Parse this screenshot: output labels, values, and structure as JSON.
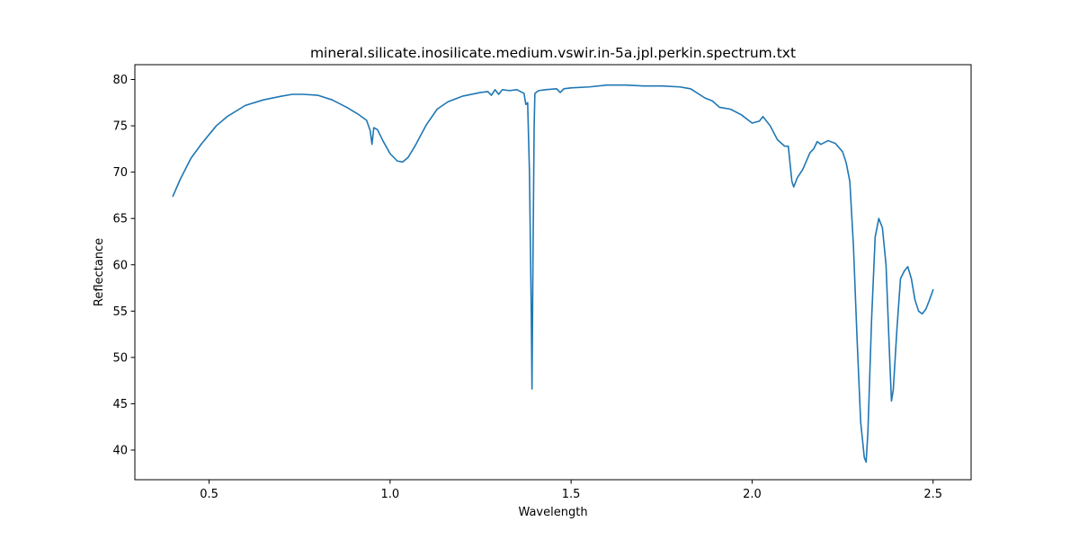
{
  "chart_data": {
    "type": "line",
    "title": "mineral.silicate.inosilicate.medium.vswir.in-5a.jpl.perkin.spectrum.txt",
    "xlabel": "Wavelength",
    "ylabel": "Reflectance",
    "xlim": [
      0.295,
      2.605
    ],
    "ylim": [
      36.8,
      81.6
    ],
    "xticks": [
      0.5,
      1.0,
      1.5,
      2.0,
      2.5
    ],
    "xtick_labels": [
      "0.5",
      "1.0",
      "1.5",
      "2.0",
      "2.5"
    ],
    "yticks": [
      40,
      45,
      50,
      55,
      60,
      65,
      70,
      75,
      80
    ],
    "ytick_labels": [
      "40",
      "45",
      "50",
      "55",
      "60",
      "65",
      "70",
      "75",
      "80"
    ],
    "grid": false,
    "series": [
      {
        "color": "#1f77b4",
        "x": [
          0.4,
          0.42,
          0.45,
          0.48,
          0.52,
          0.55,
          0.6,
          0.65,
          0.7,
          0.73,
          0.76,
          0.8,
          0.84,
          0.88,
          0.91,
          0.935,
          0.945,
          0.95,
          0.955,
          0.965,
          0.98,
          1.0,
          1.02,
          1.035,
          1.05,
          1.07,
          1.1,
          1.13,
          1.16,
          1.2,
          1.25,
          1.27,
          1.28,
          1.29,
          1.3,
          1.31,
          1.33,
          1.35,
          1.37,
          1.375,
          1.38,
          1.385,
          1.39,
          1.392,
          1.395,
          1.398,
          1.4,
          1.41,
          1.43,
          1.46,
          1.47,
          1.48,
          1.5,
          1.55,
          1.6,
          1.65,
          1.7,
          1.75,
          1.8,
          1.83,
          1.87,
          1.89,
          1.91,
          1.94,
          1.97,
          2.0,
          2.02,
          2.03,
          2.05,
          2.07,
          2.09,
          2.1,
          2.11,
          2.115,
          2.125,
          2.14,
          2.16,
          2.17,
          2.18,
          2.19,
          2.21,
          2.23,
          2.25,
          2.26,
          2.27,
          2.28,
          2.29,
          2.3,
          2.31,
          2.315,
          2.32,
          2.33,
          2.34,
          2.35,
          2.36,
          2.37,
          2.38,
          2.385,
          2.39,
          2.4,
          2.41,
          2.42,
          2.43,
          2.44,
          2.45,
          2.46,
          2.47,
          2.48,
          2.49,
          2.5
        ],
        "y": [
          67.4,
          69.2,
          71.5,
          73.1,
          75.0,
          76.0,
          77.2,
          77.8,
          78.2,
          78.4,
          78.4,
          78.3,
          77.8,
          77.0,
          76.3,
          75.6,
          74.5,
          73.0,
          74.8,
          74.6,
          73.4,
          72.0,
          71.2,
          71.1,
          71.6,
          72.9,
          75.1,
          76.8,
          77.6,
          78.2,
          78.6,
          78.7,
          78.3,
          78.9,
          78.4,
          78.9,
          78.8,
          78.9,
          78.5,
          77.3,
          77.5,
          70.0,
          55.0,
          46.6,
          62.0,
          75.0,
          78.5,
          78.8,
          78.9,
          79.0,
          78.6,
          79.0,
          79.1,
          79.2,
          79.4,
          79.4,
          79.3,
          79.3,
          79.2,
          79.0,
          78.0,
          77.7,
          77.0,
          76.8,
          76.2,
          75.3,
          75.5,
          76.0,
          75.0,
          73.5,
          72.8,
          72.8,
          69.0,
          68.4,
          69.4,
          70.3,
          72.1,
          72.5,
          73.3,
          73.0,
          73.4,
          73.1,
          72.2,
          71.0,
          69.0,
          62.0,
          52.0,
          43.0,
          39.2,
          38.7,
          42.0,
          54.0,
          63.0,
          65.0,
          64.0,
          60.0,
          50.0,
          45.3,
          46.5,
          53.0,
          58.5,
          59.3,
          59.8,
          58.5,
          56.2,
          55.0,
          54.7,
          55.2,
          56.2,
          57.3
        ]
      }
    ]
  }
}
